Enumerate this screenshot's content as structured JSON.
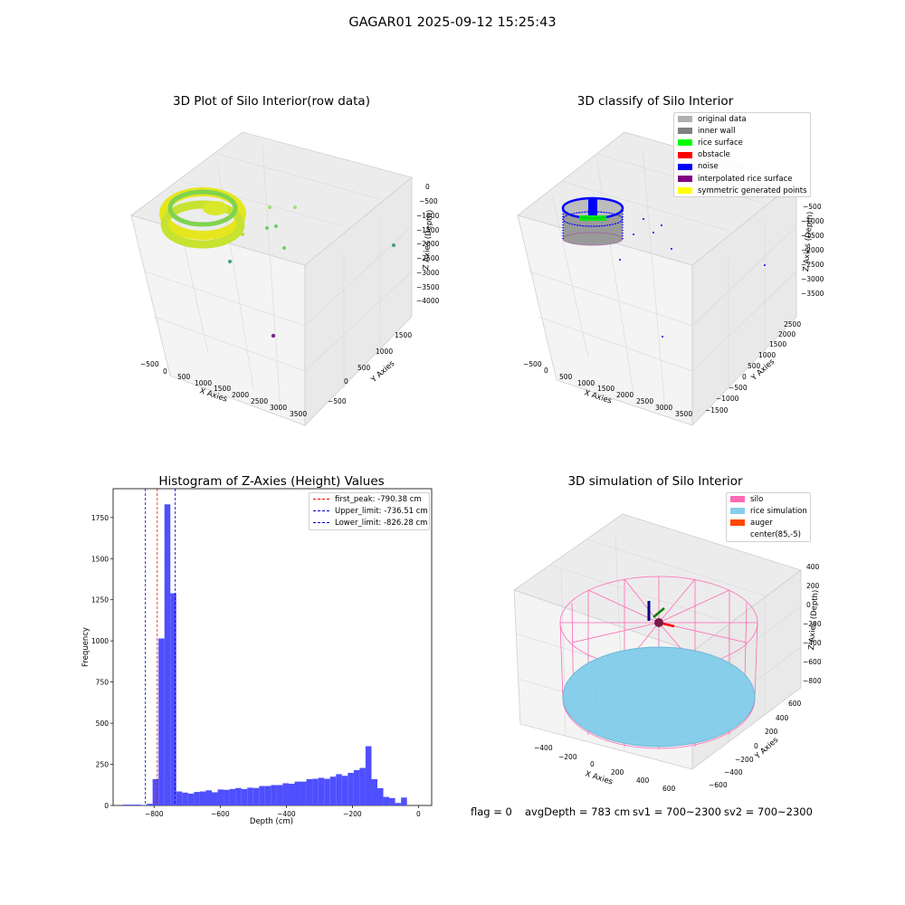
{
  "suptitle": "GAGAR01 2025-09-12 15:25:43",
  "footer": {
    "flag": "flag = 0",
    "avg_depth": "avgDepth = 783 cm",
    "sv1": "sv1 = 700~2300",
    "sv2": "sv2 = 700~2300"
  },
  "colors": {
    "hist_bar": "#4f4ffe",
    "first_peak": "#ff0000",
    "limits": "#0000cc",
    "silo": "#ff69b4",
    "rice_simulation": "#87ceeb",
    "auger": "#ff4500",
    "original_data": "#b0b0b0",
    "inner_wall": "#808080",
    "rice_surface": "#00ff00",
    "obstacle": "#ff0000",
    "noise": "#0000ff",
    "interpolated": "#800080",
    "symmetric": "#ffff00"
  },
  "chart_data": [
    {
      "type": "scatter",
      "title": "3D Plot of Silo Interior(row data)",
      "xlabel": "X Axies",
      "ylabel": "Y Axies",
      "zlabel": "Z Axies (Depth)",
      "x_ticks": [
        "−500",
        "0",
        "500",
        "1000",
        "1500",
        "2000",
        "2500",
        "3000",
        "3500"
      ],
      "y_ticks": [
        "−500",
        "0",
        "500",
        "1000",
        "1500"
      ],
      "z_ticks": [
        "0",
        "−500",
        "−1000",
        "−1500",
        "−2000",
        "−2500",
        "−3000",
        "−3500",
        "−4000"
      ],
      "grid": true
    },
    {
      "type": "scatter",
      "title": "3D classify of Silo Interior",
      "xlabel": "X Axies",
      "ylabel": "Y Axies",
      "zlabel": "Z Axies (Depth)",
      "x_ticks": [
        "−500",
        "0",
        "500",
        "1000",
        "1500",
        "2000",
        "2500",
        "3000",
        "3500"
      ],
      "y_ticks": [
        "−1500",
        "−1000",
        "−500",
        "0",
        "500",
        "1000",
        "1500",
        "2000",
        "2500"
      ],
      "z_ticks": [
        "−500",
        "−1000",
        "−1500",
        "−2000",
        "−2500",
        "−3000",
        "−3500"
      ],
      "legend": [
        "original data",
        "inner wall",
        "rice surface",
        "obstacle",
        "noise",
        "interpolated rice surface",
        "symmetric generated points"
      ],
      "legend_position": "top-right",
      "grid": true
    },
    {
      "type": "bar",
      "title": "Histogram of Z-Axies (Height) Values",
      "xlabel": "Depth (cm)",
      "ylabel": "Frequency",
      "xlim": [
        -924,
        40
      ],
      "ylim": [
        0,
        1925
      ],
      "x_ticks": [
        -800,
        -600,
        -400,
        -200,
        0
      ],
      "x_tick_labels": [
        "−800",
        "−600",
        "−400",
        "−200",
        "0"
      ],
      "y_ticks": [
        0,
        250,
        500,
        750,
        1000,
        1250,
        1500,
        1750
      ],
      "bin_edges_start": -894,
      "bin_width": 17.9,
      "values": [
        5,
        5,
        5,
        3,
        10,
        160,
        1015,
        1830,
        1290,
        85,
        78,
        72,
        82,
        85,
        92,
        80,
        97,
        95,
        100,
        106,
        100,
        108,
        106,
        118,
        118,
        124,
        124,
        135,
        132,
        145,
        145,
        160,
        162,
        168,
        162,
        175,
        190,
        180,
        198,
        215,
        228,
        360,
        160,
        105,
        52,
        45,
        15,
        48
      ],
      "lines": [
        {
          "label": "first_peak: -790.38 cm",
          "x": -790.38,
          "style": "dashed",
          "color": "red"
        },
        {
          "label": "Upper_limit: -736.51 cm",
          "x": -736.51,
          "style": "dashed",
          "color": "blue"
        },
        {
          "label": "Lower_limit: -826.28 cm",
          "x": -826.28,
          "style": "dashed",
          "color": "blue"
        }
      ],
      "legend_position": "top-right"
    },
    {
      "type": "scatter",
      "title": "3D simulation of Silo Interior",
      "xlabel": "X Axies",
      "ylabel": "Y Axies",
      "zlabel": "Z Axies (Depth)",
      "x_ticks": [
        "−400",
        "−200",
        "0",
        "200",
        "400",
        "600"
      ],
      "y_ticks": [
        "−600",
        "−400",
        "−200",
        "0",
        "200",
        "400",
        "600"
      ],
      "z_ticks": [
        "400",
        "200",
        "0",
        "−200",
        "−400",
        "−600",
        "−800"
      ],
      "legend": [
        "silo",
        "rice simulation",
        "auger",
        "center(85,-5)"
      ],
      "legend_position": "top-right",
      "grid": true
    }
  ]
}
